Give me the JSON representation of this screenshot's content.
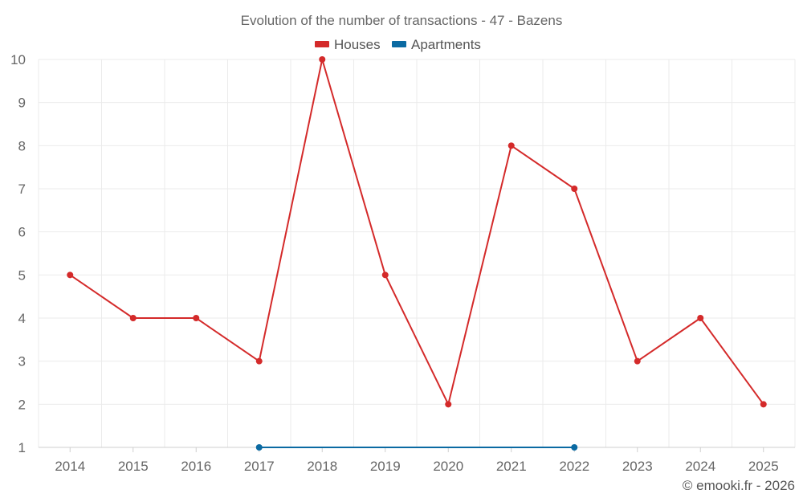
{
  "chart_data": {
    "type": "line",
    "title": "Evolution of the number of transactions - 47 - Bazens",
    "categories": [
      "2014",
      "2015",
      "2016",
      "2017",
      "2018",
      "2019",
      "2020",
      "2021",
      "2022",
      "2023",
      "2024",
      "2025"
    ],
    "series": [
      {
        "name": "Houses",
        "color": "#d42a2a",
        "values": [
          5,
          4,
          4,
          3,
          10,
          5,
          2,
          8,
          7,
          3,
          4,
          2
        ]
      },
      {
        "name": "Apartments",
        "color": "#0b6aa2",
        "values": [
          null,
          null,
          null,
          1,
          null,
          null,
          null,
          null,
          1,
          null,
          null,
          null
        ]
      }
    ],
    "ylim": [
      1,
      10
    ],
    "yticks": [
      1,
      2,
      3,
      4,
      5,
      6,
      7,
      8,
      9,
      10
    ],
    "xlabel": "",
    "ylabel": "",
    "grid": true,
    "legend_position": "top-center"
  },
  "credit": "© emooki.fr - 2026"
}
